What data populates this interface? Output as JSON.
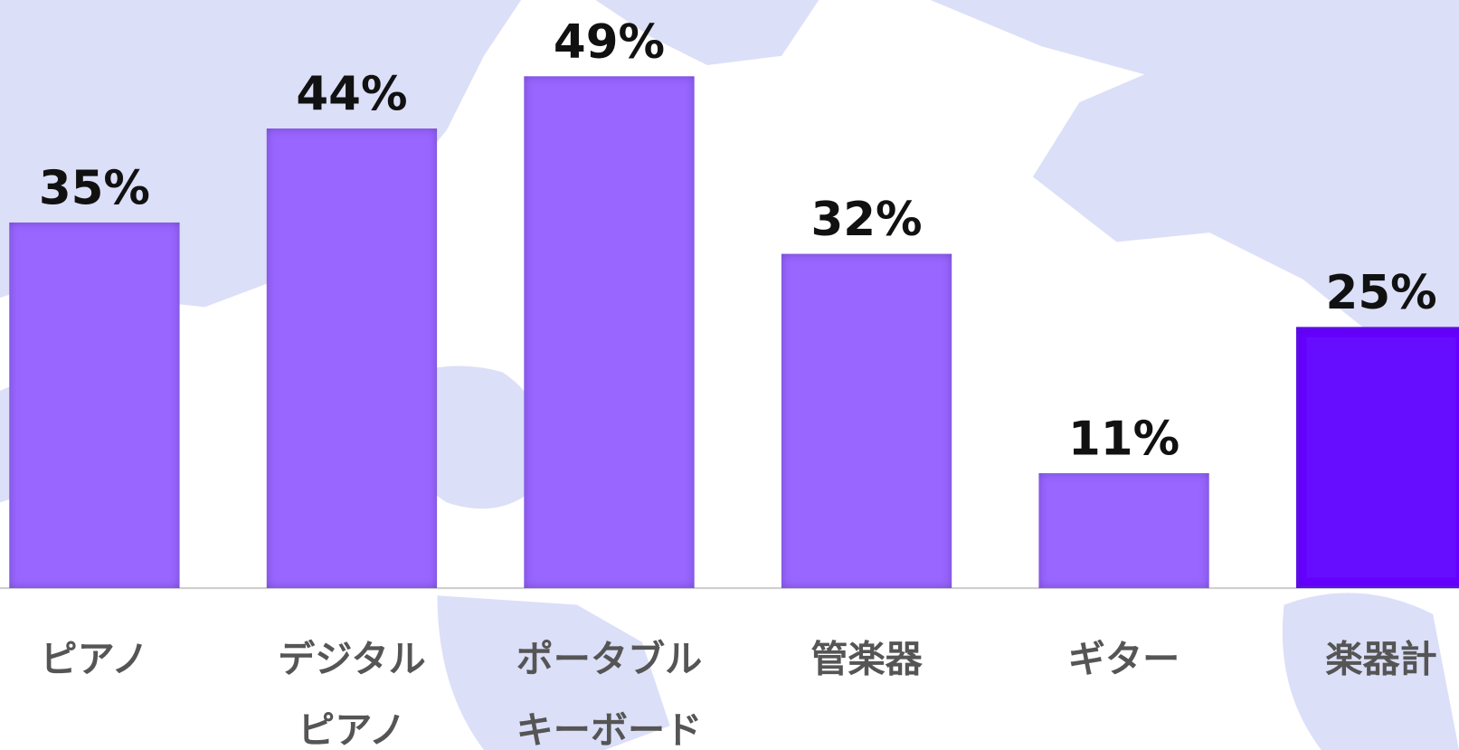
{
  "chart_data": {
    "type": "bar",
    "categories": [
      [
        "ピアノ"
      ],
      [
        "デジタル",
        "ピアノ"
      ],
      [
        "ポータブル",
        "キーボード"
      ],
      [
        "管楽器"
      ],
      [
        "ギター"
      ],
      [
        "楽器計"
      ]
    ],
    "values": [
      35,
      44,
      49,
      32,
      11,
      25
    ],
    "value_labels": [
      "35%",
      "44%",
      "49%",
      "32%",
      "11%",
      "25%"
    ],
    "colors": [
      "#9966ff",
      "#9966ff",
      "#9966ff",
      "#9966ff",
      "#9966ff",
      "#6611ff"
    ]
  }
}
